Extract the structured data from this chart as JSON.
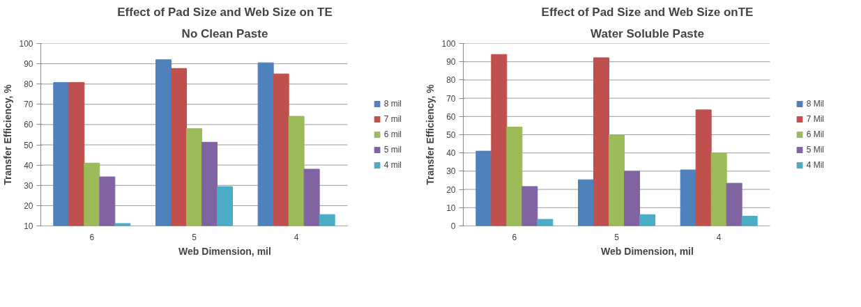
{
  "chart_data": [
    {
      "type": "bar",
      "title": "Effect of Pad Size and Web Size on TE",
      "subtitle": "No Clean Paste",
      "xlabel": "Web Dimension, mil",
      "ylabel": "Transfer Efficiency, %",
      "categories": [
        "6",
        "5",
        "4"
      ],
      "series": [
        {
          "name": "8 mil",
          "color": "#4f81bd",
          "values": [
            80.8,
            92,
            90.5
          ]
        },
        {
          "name": "7 mil",
          "color": "#c0504d",
          "values": [
            80.8,
            87.7,
            85
          ]
        },
        {
          "name": "6 mil",
          "color": "#9bbb59",
          "values": [
            41,
            58,
            64.1
          ]
        },
        {
          "name": "5 mil",
          "color": "#8064a2",
          "values": [
            34.2,
            51.3,
            38
          ]
        },
        {
          "name": "4 mil",
          "color": "#4bacc6",
          "values": [
            11.2,
            29.4,
            15.6
          ]
        }
      ],
      "ylim": [
        10,
        100
      ],
      "yticks": [
        10,
        20,
        30,
        40,
        50,
        60,
        70,
        80,
        90,
        100
      ],
      "grid": "y",
      "legend": "right"
    },
    {
      "type": "bar",
      "title": "Effect of Pad Size and Web Size onTE",
      "subtitle": "Water Soluble Paste",
      "xlabel": "Web Dimension, mil",
      "ylabel": "Transfer Efficiency, %",
      "categories": [
        "6",
        "5",
        "4"
      ],
      "series": [
        {
          "name": "8 Mil",
          "color": "#4f81bd",
          "values": [
            41,
            25.3,
            30.7
          ]
        },
        {
          "name": "7 Mil",
          "color": "#c0504d",
          "values": [
            94,
            92.2,
            63.6
          ]
        },
        {
          "name": "6 Mil",
          "color": "#9bbb59",
          "values": [
            54.2,
            50,
            40.1
          ]
        },
        {
          "name": "5 Mil",
          "color": "#8064a2",
          "values": [
            21.6,
            30,
            23.4
          ]
        },
        {
          "name": "4 Mil",
          "color": "#4bacc6",
          "values": [
            3.6,
            6.2,
            5.3
          ]
        }
      ],
      "ylim": [
        0,
        100
      ],
      "yticks": [
        0,
        10,
        20,
        30,
        40,
        50,
        60,
        70,
        80,
        90,
        100
      ],
      "grid": "y",
      "legend": "right"
    }
  ]
}
